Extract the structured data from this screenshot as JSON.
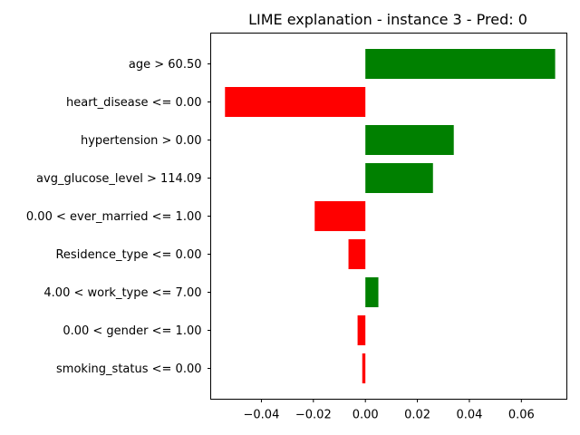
{
  "chart_data": {
    "type": "bar",
    "orientation": "horizontal",
    "title": "LIME explanation - instance 3 - Pred: 0",
    "xlabel": "",
    "ylabel": "",
    "xlim": [
      -0.0595,
      0.0775
    ],
    "x_ticks": [
      -0.04,
      -0.02,
      0.0,
      0.02,
      0.04,
      0.06
    ],
    "x_tick_labels": [
      "−0.04",
      "−0.02",
      "0.00",
      "0.02",
      "0.04",
      "0.06"
    ],
    "grid": false,
    "legend": "none",
    "positive_color": "#008000",
    "negative_color": "#ff0000",
    "categories": [
      "age > 60.50",
      "heart_disease <= 0.00",
      "hypertension > 0.00",
      "avg_glucose_level > 114.09",
      "0.00 < ever_married <= 1.00",
      "Residence_type <= 0.00",
      "4.00 < work_type <= 7.00",
      "0.00 < gender <= 1.00",
      "smoking_status <= 0.00"
    ],
    "values": [
      0.073,
      -0.054,
      0.034,
      0.026,
      -0.0195,
      -0.0065,
      0.005,
      -0.003,
      -0.0012
    ]
  }
}
